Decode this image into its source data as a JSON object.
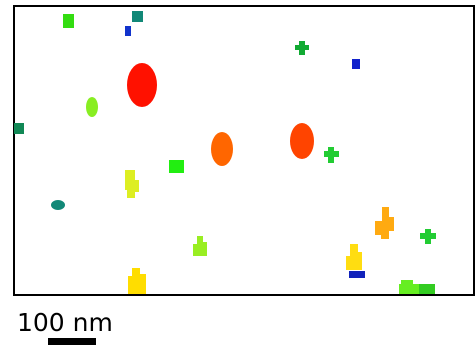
{
  "scale_bar": {
    "label": "100 nm"
  }
}
